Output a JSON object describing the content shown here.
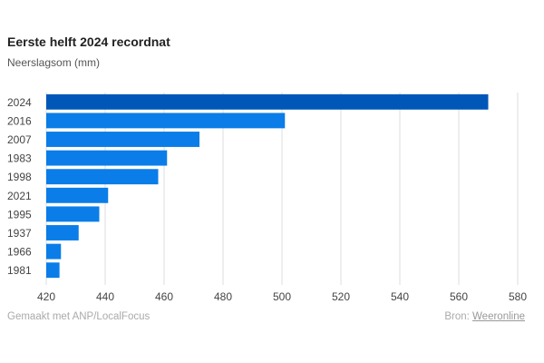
{
  "chart_data": {
    "type": "bar",
    "orientation": "horizontal",
    "title": "Eerste helft 2024 recordnat",
    "subtitle": "Neerslagsom (mm)",
    "categories": [
      "2024",
      "2016",
      "2007",
      "1983",
      "1998",
      "2021",
      "1995",
      "1937",
      "1966",
      "1981"
    ],
    "values": [
      570,
      501,
      472,
      461,
      458,
      441,
      438,
      431,
      425,
      424.5
    ],
    "highlight": "2024",
    "colors": {
      "highlight": "#0057b8",
      "default": "#0a7de8",
      "grid": "#dddddd"
    },
    "xlabel": "",
    "ylabel": "",
    "xlim": [
      420,
      580
    ],
    "xticks": [
      420,
      440,
      460,
      480,
      500,
      520,
      540,
      560,
      580
    ],
    "grid": true,
    "legend": "none"
  },
  "footer": {
    "credit": "Gemaakt met ANP/LocalFocus",
    "source_label": "Bron:",
    "source_link": "Weeronline"
  }
}
